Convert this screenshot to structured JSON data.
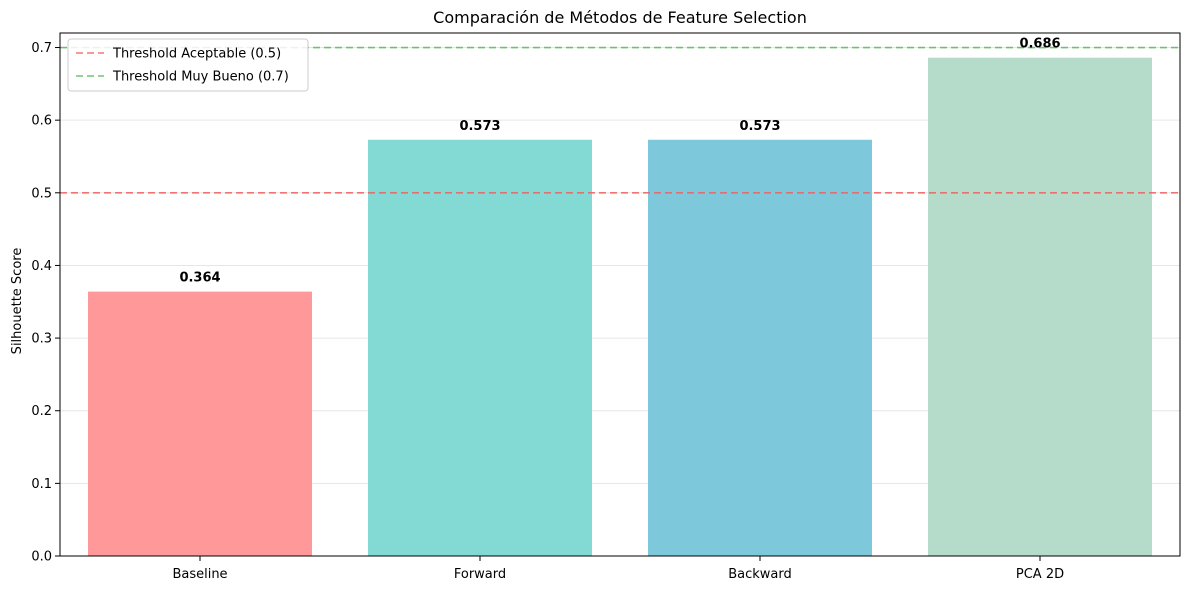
{
  "chart_data": {
    "type": "bar",
    "title": "Comparación de Métodos de Feature Selection",
    "xlabel": "",
    "ylabel": "Silhouette Score",
    "categories": [
      "Baseline",
      "Forward",
      "Backward",
      "PCA 2D"
    ],
    "values": [
      0.364,
      0.573,
      0.573,
      0.686
    ],
    "value_labels": [
      "0.364",
      "0.573",
      "0.573",
      "0.686"
    ],
    "colors": [
      "#ff9999",
      "#83dad4",
      "#7ec8db",
      "#b5dbcb"
    ],
    "ylim": [
      0,
      0.72
    ],
    "yticks": [
      0.0,
      0.1,
      0.2,
      0.3,
      0.4,
      0.5,
      0.6,
      0.7
    ],
    "ytick_labels": [
      "0.0",
      "0.1",
      "0.2",
      "0.3",
      "0.4",
      "0.5",
      "0.6",
      "0.7"
    ],
    "grid": "horizontal",
    "reference_lines": [
      {
        "label": "Threshold Aceptable (0.5)",
        "value": 0.5,
        "color": "#f06060",
        "style": "dashed"
      },
      {
        "label": "Threshold Muy Bueno (0.7)",
        "value": 0.7,
        "color": "#5cb85c",
        "style": "dashed"
      }
    ],
    "legend_position": "top-left"
  }
}
